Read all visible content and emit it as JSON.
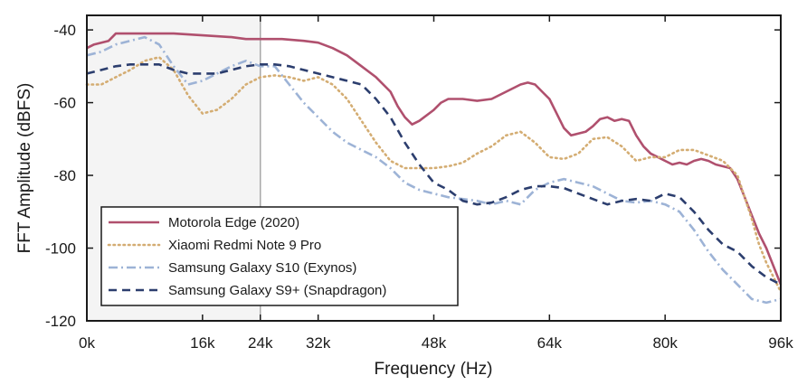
{
  "chart_data": {
    "type": "line",
    "xlabel": "Frequency (Hz)",
    "ylabel": "FFT Amplitude (dBFS)",
    "xlim": [
      0,
      96000
    ],
    "ylim": [
      -120,
      -36
    ],
    "x_ticks": [
      {
        "value": 0,
        "label": "0k"
      },
      {
        "value": 16000,
        "label": "16k"
      },
      {
        "value": 24000,
        "label": "24k",
        "muted": true
      },
      {
        "value": 32000,
        "label": "32k"
      },
      {
        "value": 48000,
        "label": "48k"
      },
      {
        "value": 64000,
        "label": "64k"
      },
      {
        "value": 80000,
        "label": "80k"
      },
      {
        "value": 96000,
        "label": "96k"
      }
    ],
    "y_ticks": [
      {
        "value": -40,
        "label": "-40"
      },
      {
        "value": -60,
        "label": "-60"
      },
      {
        "value": -80,
        "label": "-80"
      },
      {
        "value": -100,
        "label": "-100"
      },
      {
        "value": -120,
        "label": "-120"
      }
    ],
    "shaded_region": {
      "x0": 0,
      "x1": 24000,
      "fill": "#f4f4f4",
      "edge": "#a8a8a8"
    },
    "grid": false,
    "legend_position": "bottom-left",
    "series": [
      {
        "name": "Motorola Edge (2020)",
        "color": "#b0506e",
        "dash": "solid",
        "x": [
          0,
          1000,
          2000,
          3000,
          4000,
          8000,
          12000,
          16000,
          20000,
          22000,
          24000,
          27000,
          30000,
          32000,
          34000,
          36000,
          38000,
          40000,
          42000,
          43000,
          44000,
          45000,
          46000,
          48000,
          49000,
          50000,
          52000,
          54000,
          56000,
          58000,
          60000,
          61000,
          62000,
          63000,
          64000,
          65000,
          66000,
          67000,
          68000,
          69000,
          70000,
          71000,
          72000,
          73000,
          74000,
          75000,
          76000,
          77000,
          78000,
          79000,
          80000,
          81000,
          82000,
          83000,
          84000,
          85000,
          86000,
          87000,
          88000,
          89000,
          90000,
          91000,
          92000,
          93000,
          94000,
          95000,
          96000
        ],
        "y": [
          -45,
          -44,
          -43.5,
          -43,
          -41,
          -41,
          -41,
          -41.5,
          -42,
          -42.5,
          -42.5,
          -42.5,
          -43,
          -43.5,
          -45,
          -47,
          -50,
          -53,
          -57,
          -61,
          -64,
          -66,
          -65,
          -62,
          -60,
          -59,
          -59,
          -59.5,
          -59,
          -57,
          -55,
          -54.5,
          -55,
          -57,
          -59,
          -63,
          -67,
          -69,
          -68.5,
          -68,
          -66.5,
          -64.5,
          -64,
          -65,
          -64.5,
          -65,
          -69,
          -72,
          -74,
          -75,
          -76,
          -77,
          -76.5,
          -77,
          -76,
          -75.5,
          -76,
          -77,
          -77.5,
          -78,
          -81,
          -86,
          -91,
          -96,
          -100,
          -105,
          -110
        ]
      },
      {
        "name": "Xiaomi Redmi Note 9 Pro",
        "color": "#d4ad73",
        "dash": "dot",
        "x": [
          0,
          2000,
          4000,
          6000,
          8000,
          10000,
          12000,
          14000,
          16000,
          18000,
          20000,
          22000,
          24000,
          26000,
          28000,
          30000,
          32000,
          34000,
          36000,
          38000,
          40000,
          42000,
          44000,
          46000,
          48000,
          50000,
          52000,
          54000,
          56000,
          58000,
          60000,
          62000,
          64000,
          66000,
          68000,
          70000,
          72000,
          74000,
          76000,
          78000,
          80000,
          82000,
          84000,
          86000,
          88000,
          90000,
          91000,
          92000,
          93000,
          94000,
          95000,
          96000
        ],
        "y": [
          -55,
          -55,
          -53,
          -51,
          -48.5,
          -47.5,
          -51,
          -58,
          -63,
          -62,
          -59,
          -55,
          -53,
          -52.5,
          -53,
          -54,
          -53,
          -55,
          -59,
          -65,
          -71,
          -76,
          -78,
          -78,
          -78,
          -77.5,
          -76.5,
          -74,
          -72,
          -69,
          -68,
          -71,
          -75,
          -75.5,
          -74,
          -70,
          -69.5,
          -72,
          -76,
          -75,
          -75,
          -73,
          -73,
          -74.5,
          -76,
          -80,
          -86,
          -92,
          -99,
          -104,
          -108,
          -112
        ]
      },
      {
        "name": "Samsung Galaxy S10 (Exynos)",
        "color": "#9db3d6",
        "dash": "dashdot",
        "x": [
          0,
          2000,
          4000,
          6000,
          8000,
          10000,
          12000,
          14000,
          16000,
          18000,
          20000,
          22000,
          24000,
          26000,
          28000,
          30000,
          32000,
          34000,
          36000,
          38000,
          40000,
          42000,
          44000,
          46000,
          48000,
          50000,
          52000,
          54000,
          56000,
          58000,
          60000,
          62000,
          64000,
          66000,
          68000,
          70000,
          72000,
          74000,
          76000,
          78000,
          80000,
          82000,
          84000,
          86000,
          88000,
          90000,
          92000,
          94000,
          96000
        ],
        "y": [
          -47,
          -46,
          -44,
          -43,
          -42,
          -44,
          -50,
          -55,
          -54,
          -52,
          -50,
          -48.5,
          -50,
          -50,
          -55,
          -60,
          -64,
          -68,
          -71,
          -73,
          -75,
          -78,
          -82,
          -84,
          -85,
          -86,
          -86.5,
          -87,
          -88,
          -87,
          -88,
          -84,
          -82,
          -81,
          -82,
          -83,
          -85,
          -87,
          -87.5,
          -87,
          -88,
          -90,
          -95,
          -101,
          -106,
          -110,
          -114,
          -115,
          -114
        ]
      },
      {
        "name": "Samsung Galaxy S9+ (Snapdragon)",
        "color": "#2c3e6e",
        "dash": "dash",
        "x": [
          0,
          2000,
          4000,
          6000,
          8000,
          10000,
          12000,
          14000,
          16000,
          18000,
          20000,
          22000,
          24000,
          26000,
          28000,
          30000,
          32000,
          34000,
          36000,
          38000,
          40000,
          42000,
          44000,
          46000,
          48000,
          50000,
          52000,
          54000,
          56000,
          58000,
          60000,
          62000,
          64000,
          66000,
          68000,
          70000,
          72000,
          74000,
          76000,
          78000,
          80000,
          82000,
          84000,
          86000,
          88000,
          90000,
          92000,
          94000,
          96000
        ],
        "y": [
          -52,
          -51,
          -50,
          -49.5,
          -49.5,
          -49.5,
          -51,
          -52,
          -52,
          -52,
          -51,
          -50,
          -49.5,
          -49.5,
          -50,
          -51,
          -52,
          -53,
          -54,
          -55,
          -59,
          -64,
          -71,
          -77,
          -82,
          -84,
          -87,
          -88,
          -87.5,
          -86,
          -84,
          -83,
          -83,
          -83.5,
          -85,
          -86.5,
          -88,
          -87,
          -86.5,
          -87,
          -85,
          -86,
          -90,
          -95,
          -99,
          -101,
          -105,
          -108,
          -110
        ]
      }
    ]
  }
}
